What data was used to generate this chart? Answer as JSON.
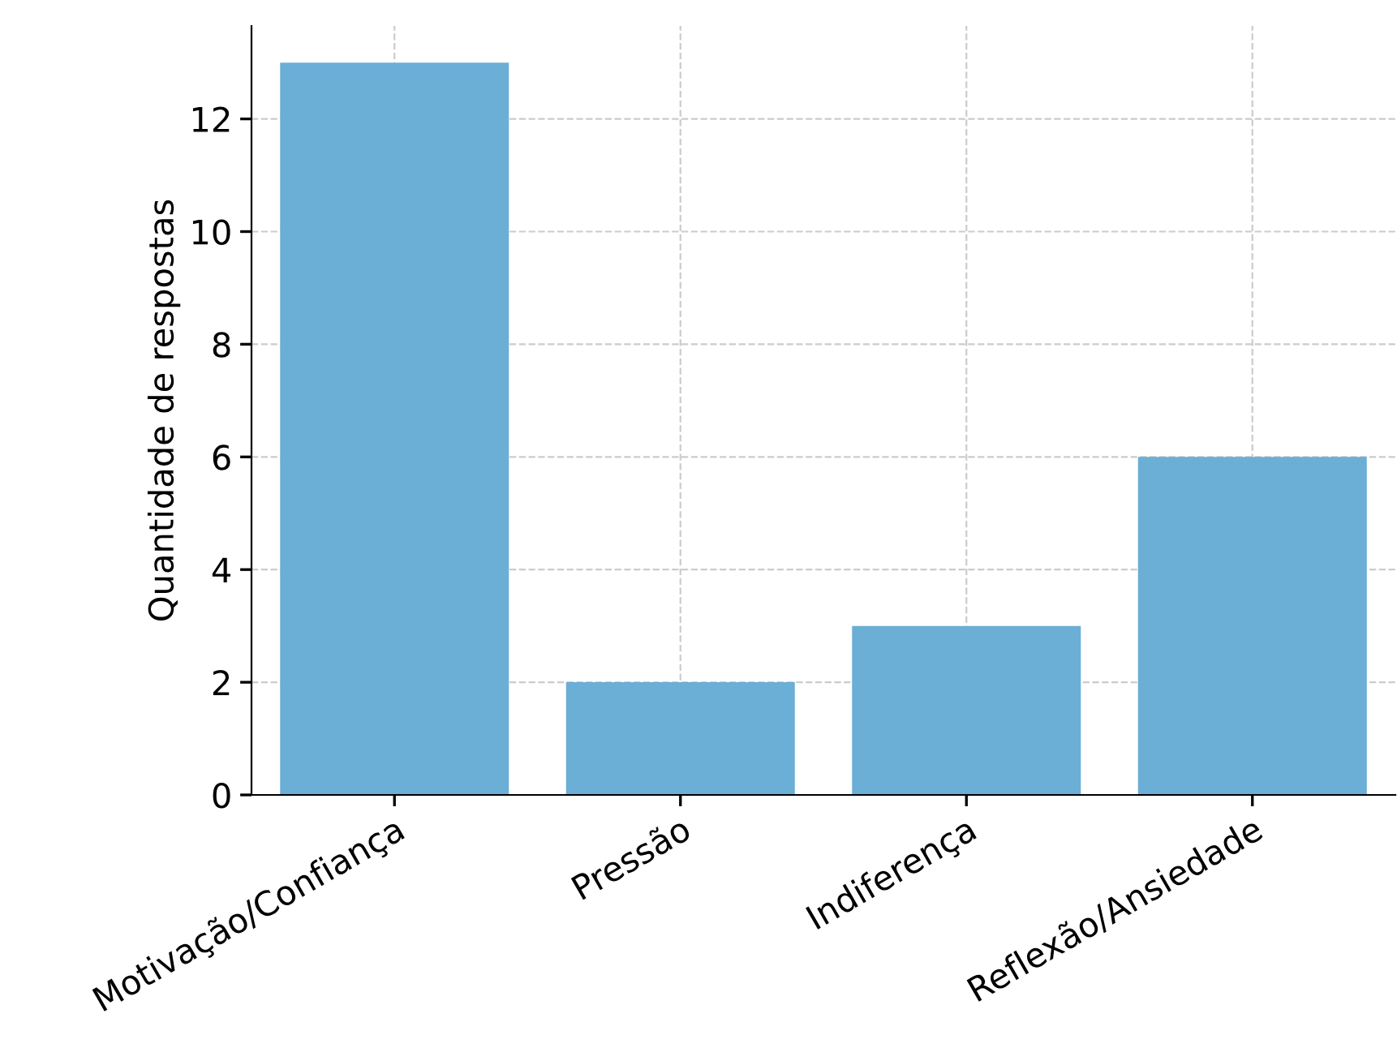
{
  "chart_data": {
    "type": "bar",
    "ylabel": "Quantidade de respostas",
    "categories": [
      "Motivação/Confiança",
      "Pressão",
      "Indiferença",
      "Reflexão/Ansiedade"
    ],
    "values": [
      13,
      2,
      3,
      6
    ],
    "color": "#6baed6",
    "ylim": [
      0,
      13.65
    ],
    "yticks": [
      0,
      2,
      4,
      6,
      8,
      10,
      12
    ],
    "grid": true
  }
}
